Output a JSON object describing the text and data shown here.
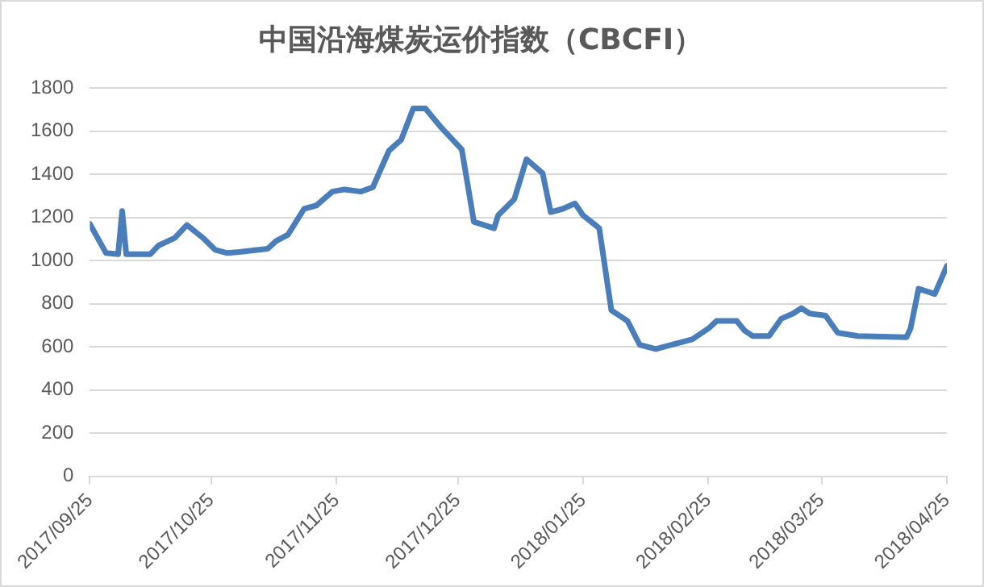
{
  "chart_data": {
    "type": "line",
    "title": "中国沿海煤炭运价指数（CBCFI）",
    "color": "#4a7ebb",
    "grid": "y",
    "legend": false,
    "marker": "none",
    "line_style": "solid",
    "x": [
      "2017-09-25",
      "2017-09-29",
      "2017-10-02",
      "2017-10-03",
      "2017-10-04",
      "2017-10-10",
      "2017-10-12",
      "2017-10-16",
      "2017-10-19",
      "2017-10-23",
      "2017-10-26",
      "2017-10-29",
      "2017-11-01",
      "2017-11-08",
      "2017-11-10",
      "2017-11-13",
      "2017-11-17",
      "2017-11-20",
      "2017-11-24",
      "2017-11-27",
      "2017-12-01",
      "2017-12-04",
      "2017-12-08",
      "2017-12-11",
      "2017-12-14",
      "2017-12-17",
      "2017-12-21",
      "2017-12-26",
      "2017-12-29",
      "2018-01-03",
      "2018-01-04",
      "2018-01-08",
      "2018-01-11",
      "2018-01-15",
      "2018-01-17",
      "2018-01-20",
      "2018-01-23",
      "2018-01-25",
      "2018-01-29",
      "2018-02-01",
      "2018-02-05",
      "2018-02-08",
      "2018-02-12",
      "2018-02-14",
      "2018-02-21",
      "2018-02-23",
      "2018-02-25",
      "2018-02-27",
      "2018-03-04",
      "2018-03-06",
      "2018-03-08",
      "2018-03-12",
      "2018-03-15",
      "2018-03-18",
      "2018-03-20",
      "2018-03-22",
      "2018-03-26",
      "2018-03-29",
      "2018-04-03",
      "2018-04-15",
      "2018-04-16",
      "2018-04-18",
      "2018-04-22",
      "2018-04-25"
    ],
    "values": [
      1170,
      1035,
      1030,
      1230,
      1030,
      1030,
      1070,
      1105,
      1165,
      1105,
      1050,
      1035,
      1040,
      1055,
      1090,
      1120,
      1240,
      1255,
      1320,
      1330,
      1320,
      1340,
      1510,
      1560,
      1705,
      1705,
      1615,
      1515,
      1180,
      1150,
      1210,
      1285,
      1470,
      1405,
      1225,
      1240,
      1265,
      1210,
      1150,
      770,
      720,
      610,
      590,
      600,
      635,
      660,
      685,
      720,
      720,
      675,
      650,
      650,
      730,
      755,
      780,
      755,
      745,
      665,
      650,
      645,
      685,
      870,
      845,
      975
    ],
    "xlim": [
      "2017-09-25",
      "2018-04-25"
    ],
    "xticks": [
      {
        "value": "2017-09-25",
        "label": "2017/09/25"
      },
      {
        "value": "2017-10-25",
        "label": "2017/10/25"
      },
      {
        "value": "2017-11-25",
        "label": "2017/11/25"
      },
      {
        "value": "2017-12-25",
        "label": "2017/12/25"
      },
      {
        "value": "2018-01-25",
        "label": "2018/01/25"
      },
      {
        "value": "2018-02-25",
        "label": "2018/02/25"
      },
      {
        "value": "2018-03-25",
        "label": "2018/03/25"
      },
      {
        "value": "2018-04-25",
        "label": "2018/04/25"
      }
    ],
    "ylim": [
      0,
      1800
    ],
    "yticks": [
      0,
      200,
      400,
      600,
      800,
      1000,
      1200,
      1400,
      1600,
      1800
    ]
  }
}
